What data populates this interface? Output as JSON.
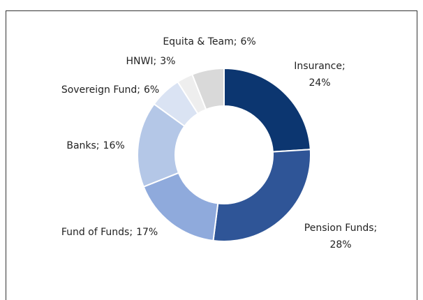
{
  "chart_data": {
    "type": "donut",
    "categories": [
      "Insurance;",
      "Pension Funds;",
      "Fund of Funds;",
      "Banks;",
      "Sovereign Fund;",
      "HNWI;",
      "Equita & Team;"
    ],
    "values": [
      24,
      28,
      17,
      16,
      6,
      3,
      6
    ],
    "value_labels": [
      "24%",
      "28%",
      "17%",
      "16%",
      "6%",
      "3%",
      "6%"
    ],
    "colors": [
      "#0c3670",
      "#2f5597",
      "#8faadc",
      "#b4c7e7",
      "#dae3f3",
      "#eeeeee",
      "#d9d9d9"
    ]
  }
}
